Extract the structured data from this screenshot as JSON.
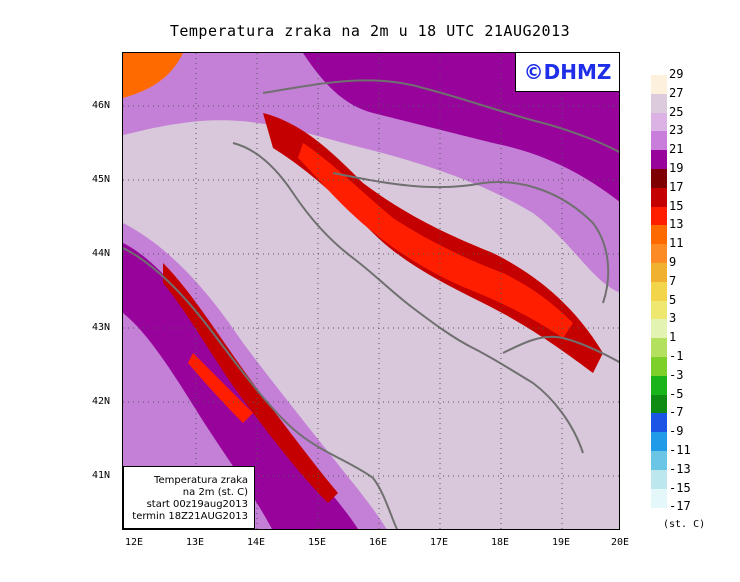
{
  "title": "Temperatura zraka na 2m u 18 UTC 21AUG2013",
  "watermark": "©DHMZ",
  "info_box": {
    "line1": "Temperatura zraka",
    "line2": "na 2m (st. C)",
    "line3": "start 00z19aug2013",
    "line4": "termin 18Z21AUG2013"
  },
  "y_axis_labels": [
    "46N",
    "45N",
    "44N",
    "43N",
    "42N",
    "41N"
  ],
  "x_axis_labels": [
    "12E",
    "13E",
    "14E",
    "15E",
    "16E",
    "17E",
    "18E",
    "19E",
    "20E"
  ],
  "legend": {
    "units": "(st. C)",
    "levels": [
      "29",
      "27",
      "25",
      "23",
      "21",
      "19",
      "17",
      "15",
      "13",
      "11",
      "9",
      "7",
      "5",
      "3",
      "1",
      "-1",
      "-3",
      "-5",
      "-7",
      "-9",
      "-11",
      "-13",
      "-15",
      "-17"
    ],
    "colors": [
      "#fdf0dd",
      "#dccbdc",
      "#dbb2e3",
      "#c97edc",
      "#97039b",
      "#7e0000",
      "#c50000",
      "#ff1f00",
      "#ff6a00",
      "#fc8a25",
      "#f0b030",
      "#f2d54a",
      "#efe870",
      "#e3f3b2",
      "#b3e05f",
      "#7dcf2a",
      "#18b41a",
      "#0f8a13",
      "#1a55e6",
      "#209be8",
      "#6bc6e5",
      "#bce7ef",
      "#e4f7f9"
    ]
  }
}
